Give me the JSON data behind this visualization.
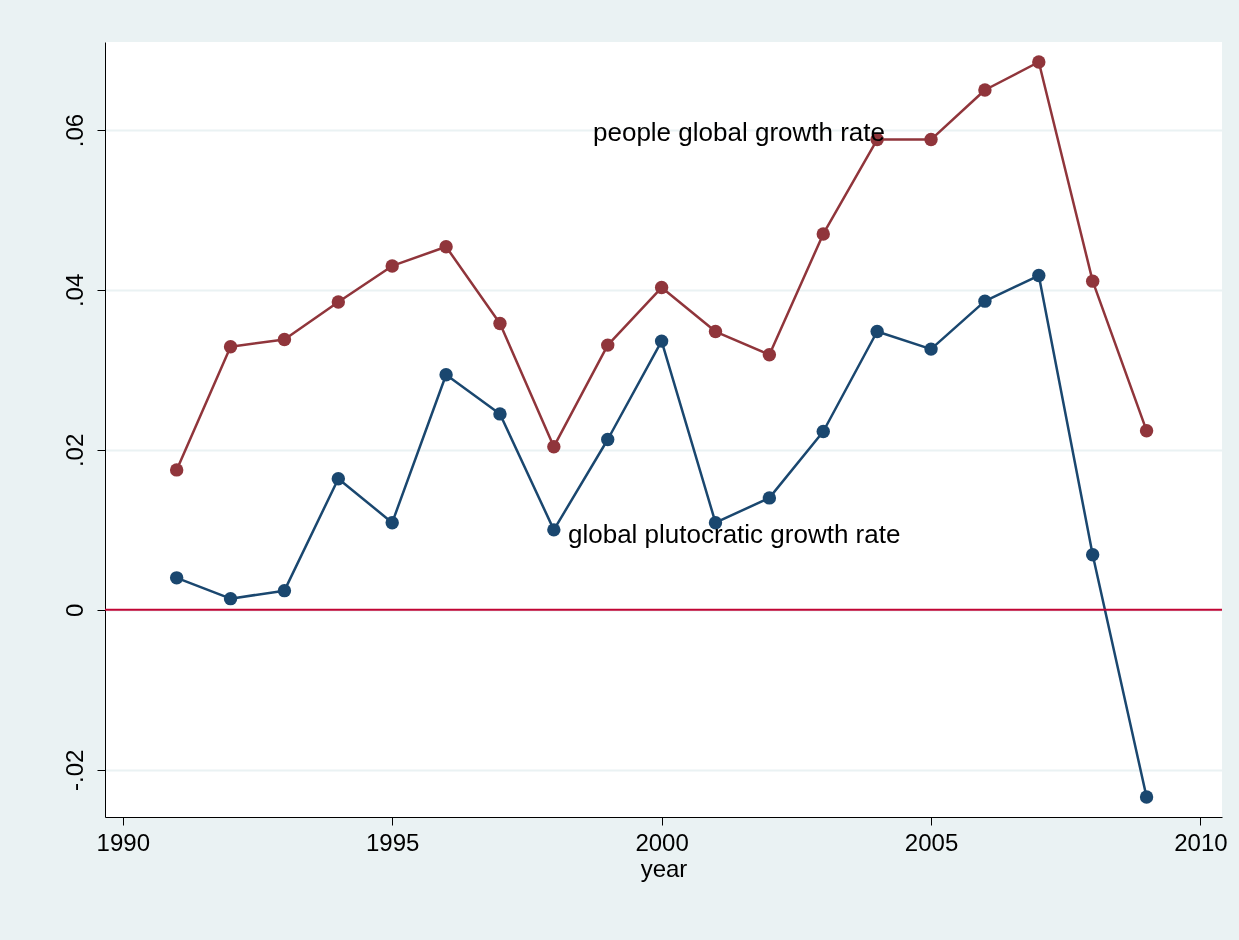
{
  "chart_data": {
    "type": "line",
    "xlabel": "year",
    "x": [
      1991,
      1992,
      1993,
      1994,
      1995,
      1996,
      1997,
      1998,
      1999,
      2000,
      2001,
      2002,
      2003,
      2004,
      2005,
      2006,
      2007,
      2008,
      2009
    ],
    "series": [
      {
        "color": "#90353b",
        "values": [
          0.0175,
          0.0329,
          0.0338,
          0.0385,
          0.043,
          0.0454,
          0.0358,
          0.0204,
          0.0331,
          0.0403,
          0.0348,
          0.0319,
          0.047,
          0.0588,
          0.0588,
          0.065,
          0.0685,
          0.0411,
          0.0224
        ]
      },
      {
        "color": "#1a476f",
        "values": [
          0.004,
          0.0014,
          0.0024,
          0.0164,
          0.0109,
          0.0294,
          0.0245,
          0.01,
          0.0213,
          0.0336,
          0.0109,
          0.014,
          0.0223,
          0.0348,
          0.0326,
          0.0386,
          0.0418,
          0.0069,
          -0.0234
        ]
      }
    ],
    "xlim": [
      1989.67,
      2010.4
    ],
    "xticks": [
      1990,
      1995,
      2000,
      2005,
      2010
    ],
    "ylim": [
      -0.0259,
      0.071
    ],
    "yticks": [
      {
        "value": -0.02,
        "label": "-.02"
      },
      0,
      {
        "value": 0.02,
        "label": ".02"
      },
      {
        "value": 0.04,
        "label": ".04"
      },
      {
        "value": 0.06,
        "label": ".06"
      }
    ],
    "ref_lines": [
      {
        "axis": "y",
        "value": 0,
        "color": "#c10534"
      }
    ],
    "annotations": [
      "people global growth rate",
      "global plutocratic growth rate"
    ],
    "grid": "y",
    "marker": "circle",
    "line_style": "solid",
    "legend": false
  }
}
